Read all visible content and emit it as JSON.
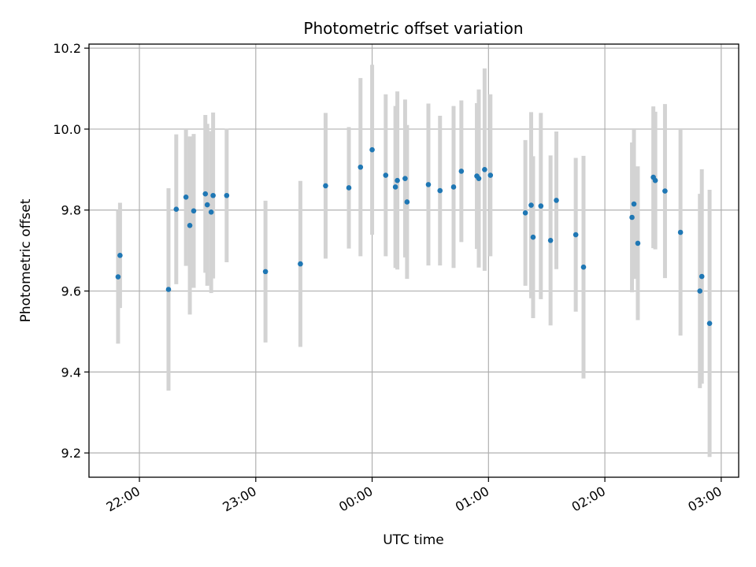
{
  "chart_data": {
    "type": "scatter",
    "title": "Photometric offset variation",
    "xlabel": "UTC time",
    "ylabel": "Photometric offset",
    "grid": true,
    "x_ticks": [
      "22:00",
      "23:00",
      "00:00",
      "01:00",
      "02:00",
      "03:00"
    ],
    "y_ticks": [
      "9.2",
      "9.4",
      "9.6",
      "9.8",
      "10.0",
      "10.2"
    ],
    "xlim": [
      "21:34",
      "03:09"
    ],
    "ylim": [
      9.14,
      10.21
    ],
    "colors": {
      "points": "#1f77b4",
      "errorbars": "#d3d3d3",
      "grid": "#b0b0b0"
    },
    "series": [
      {
        "x": [
          "21:49",
          "21:50",
          "22:15",
          "22:19",
          "22:24",
          "22:26",
          "22:28",
          "22:34",
          "22:35",
          "22:37",
          "22:38",
          "22:45",
          "23:05",
          "23:23",
          "23:36",
          "23:48",
          "23:54",
          "00:00",
          "00:07",
          "00:12",
          "00:13",
          "00:17",
          "00:18",
          "00:29",
          "00:35",
          "00:42",
          "00:46",
          "00:54",
          "00:55",
          "00:58",
          "01:01",
          "01:19",
          "01:22",
          "01:23",
          "01:27",
          "01:32",
          "01:35",
          "01:45",
          "01:49",
          "02:14",
          "02:15",
          "02:17",
          "02:25",
          "02:26",
          "02:31",
          "02:39",
          "02:49",
          "02:50",
          "02:54"
        ],
        "y": [
          9.635,
          9.688,
          9.604,
          9.802,
          9.832,
          9.762,
          9.798,
          9.84,
          9.813,
          9.795,
          9.836,
          9.836,
          9.648,
          9.667,
          9.86,
          9.855,
          9.906,
          9.949,
          9.886,
          9.857,
          9.873,
          9.878,
          9.82,
          9.863,
          9.848,
          9.857,
          9.896,
          9.884,
          9.878,
          9.9,
          9.886,
          9.793,
          9.812,
          9.733,
          9.81,
          9.725,
          9.824,
          9.739,
          9.659,
          9.782,
          9.815,
          9.718,
          9.881,
          9.873,
          9.847,
          9.745,
          9.6,
          9.636,
          9.52
        ],
        "yerr": [
          0.165,
          0.13,
          0.25,
          0.185,
          0.17,
          0.22,
          0.19,
          0.195,
          0.2,
          0.2,
          0.205,
          0.165,
          0.175,
          0.205,
          0.18,
          0.15,
          0.22,
          0.21,
          0.2,
          0.2,
          0.22,
          0.195,
          0.19,
          0.2,
          0.185,
          0.2,
          0.175,
          0.18,
          0.22,
          0.25,
          0.2,
          0.18,
          0.23,
          0.2,
          0.23,
          0.21,
          0.17,
          0.19,
          0.275,
          0.185,
          0.185,
          0.19,
          0.175,
          0.17,
          0.215,
          0.255,
          0.24,
          0.265,
          0.33
        ]
      }
    ]
  }
}
